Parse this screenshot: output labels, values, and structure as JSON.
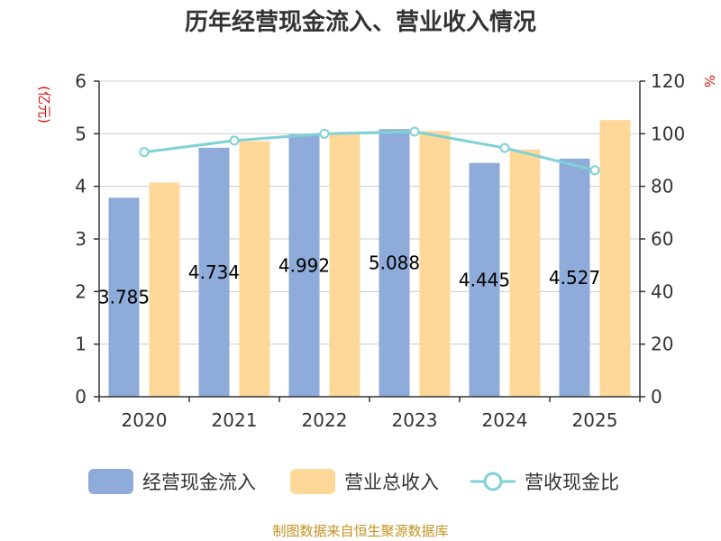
{
  "chart_data": {
    "type": "bar",
    "title": "历年经营现金流入、营业收入情况",
    "categories": [
      "2020",
      "2021",
      "2022",
      "2023",
      "2024",
      "2025"
    ],
    "y_left": {
      "unit": "(亿元)",
      "ylim": [
        0,
        6
      ],
      "ticks": [
        0,
        1,
        2,
        3,
        4,
        5,
        6
      ]
    },
    "y_right": {
      "unit": "%",
      "ylim": [
        0,
        120
      ],
      "ticks": [
        0,
        20,
        40,
        60,
        80,
        100,
        120
      ]
    },
    "series": [
      {
        "name": "经营现金流入",
        "type": "bar",
        "axis": "left",
        "color": "#8eabd9",
        "values": [
          3.785,
          4.734,
          4.992,
          5.088,
          4.445,
          4.527
        ],
        "labels": [
          "3.785",
          "4.734",
          "4.992",
          "5.088",
          "4.445",
          "4.527"
        ]
      },
      {
        "name": "营业总收入",
        "type": "bar",
        "axis": "left",
        "color": "#fed898",
        "values": [
          4.07,
          4.86,
          4.99,
          5.05,
          4.7,
          5.26
        ]
      },
      {
        "name": "营收现金比",
        "type": "line",
        "axis": "right",
        "color": "#7fd1d6",
        "values": [
          93.0,
          97.4,
          100.0,
          100.8,
          94.6,
          86.1
        ]
      }
    ],
    "legend_position": "bottom",
    "grid": true
  },
  "source_text": "制图数据来自恒生聚源数据库",
  "colors": {
    "unit_red": "#d9150b",
    "source_gold": "#c39220",
    "axis": "#333333",
    "grid": "#cccccc"
  }
}
